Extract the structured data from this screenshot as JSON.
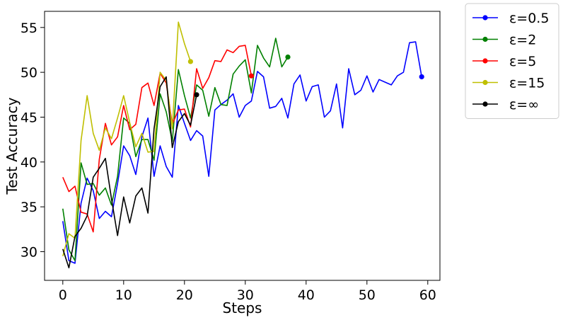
{
  "chart_data": {
    "type": "line",
    "xlabel": "Steps",
    "ylabel": "Test Accuracy",
    "xlim": [
      -3,
      62
    ],
    "ylim": [
      26.8,
      56.8
    ],
    "xticks": [
      0,
      10,
      20,
      30,
      40,
      50,
      60
    ],
    "yticks": [
      30,
      35,
      40,
      45,
      50,
      55
    ],
    "grid": false,
    "legend_position": "outside-top-right",
    "series": [
      {
        "name": "ε=0.5",
        "color": "#0000ff",
        "x": [
          0,
          1,
          2,
          3,
          4,
          5,
          6,
          7,
          8,
          9,
          10,
          11,
          12,
          13,
          14,
          15,
          16,
          17,
          18,
          19,
          20,
          21,
          22,
          23,
          24,
          25,
          26,
          27,
          28,
          29,
          30,
          31,
          32,
          33,
          34,
          35,
          36,
          37,
          38,
          39,
          40,
          41,
          42,
          43,
          44,
          45,
          46,
          47,
          48,
          49,
          50,
          51,
          52,
          53,
          54,
          55,
          56,
          57,
          58,
          59
        ],
        "values": [
          33.4,
          29.0,
          28.7,
          35.4,
          38.2,
          36.8,
          33.7,
          34.5,
          33.9,
          37.6,
          41.8,
          40.7,
          38.6,
          42.8,
          44.9,
          38.4,
          41.8,
          39.5,
          38.3,
          46.3,
          44.3,
          42.4,
          43.5,
          42.9,
          38.4,
          45.8,
          46.4,
          46.9,
          47.6,
          45.0,
          46.3,
          46.8,
          50.1,
          49.5,
          46.0,
          46.2,
          47.1,
          44.9,
          48.7,
          49.7,
          46.8,
          48.4,
          48.6,
          45.0,
          45.7,
          48.7,
          43.8,
          50.4,
          47.5,
          48.0,
          49.6,
          47.8,
          49.2,
          48.9,
          48.6,
          49.6,
          50.0,
          53.3,
          53.4,
          49.5
        ]
      },
      {
        "name": "ε=2",
        "color": "#008000",
        "x": [
          0,
          1,
          2,
          3,
          4,
          5,
          6,
          7,
          8,
          9,
          10,
          11,
          12,
          13,
          14,
          15,
          16,
          17,
          18,
          19,
          20,
          21,
          22,
          23,
          24,
          25,
          26,
          27,
          28,
          29,
          30,
          31,
          32,
          33,
          34,
          35,
          36,
          37
        ],
        "values": [
          34.8,
          30.2,
          29.0,
          39.9,
          37.5,
          37.6,
          36.3,
          37.1,
          35.2,
          38.4,
          44.9,
          44.3,
          40.6,
          42.5,
          42.5,
          40.2,
          47.6,
          45.6,
          42.3,
          50.3,
          47.4,
          44.9,
          48.6,
          48.0,
          45.1,
          48.3,
          46.4,
          46.3,
          49.8,
          50.7,
          51.4,
          47.7,
          53.0,
          51.6,
          50.6,
          53.8,
          50.6,
          51.7
        ]
      },
      {
        "name": "ε=5",
        "color": "#ff0000",
        "x": [
          0,
          1,
          2,
          3,
          4,
          5,
          6,
          7,
          8,
          9,
          10,
          11,
          12,
          13,
          14,
          15,
          16,
          17,
          18,
          19,
          20,
          21,
          22,
          23,
          24,
          25,
          26,
          27,
          28,
          29,
          30,
          31
        ],
        "values": [
          38.3,
          36.7,
          37.3,
          34.4,
          34.2,
          32.2,
          40.3,
          44.3,
          41.9,
          42.8,
          46.3,
          43.6,
          44.2,
          48.3,
          48.8,
          46.3,
          49.9,
          48.8,
          44.2,
          45.8,
          45.9,
          43.9,
          50.4,
          48.2,
          49.4,
          51.3,
          51.2,
          52.5,
          52.2,
          52.9,
          53.0,
          49.6
        ]
      },
      {
        "name": "ε=15",
        "color": "#bfbf00",
        "x": [
          0,
          1,
          2,
          3,
          4,
          5,
          6,
          7,
          8,
          9,
          10,
          11,
          12,
          13,
          14,
          15,
          16,
          17,
          18,
          19,
          20,
          21
        ],
        "values": [
          29.5,
          32.0,
          31.5,
          42.4,
          47.4,
          43.2,
          41.3,
          43.8,
          42.6,
          44.9,
          47.4,
          44.4,
          41.7,
          43.2,
          41.1,
          41.2,
          50.0,
          49.1,
          43.7,
          55.6,
          53.2,
          51.2
        ]
      },
      {
        "name": "ε=∞",
        "color": "#000000",
        "x": [
          0,
          1,
          2,
          3,
          4,
          5,
          6,
          7,
          8,
          9,
          10,
          11,
          12,
          13,
          14,
          15,
          16,
          17,
          18,
          19,
          20,
          21,
          22
        ],
        "values": [
          30.3,
          28.2,
          31.7,
          32.6,
          34.0,
          38.3,
          39.3,
          40.4,
          35.9,
          31.8,
          36.1,
          33.2,
          36.2,
          37.1,
          34.3,
          43.7,
          48.4,
          49.5,
          41.6,
          44.5,
          45.4,
          44.1,
          47.5
        ]
      }
    ]
  }
}
